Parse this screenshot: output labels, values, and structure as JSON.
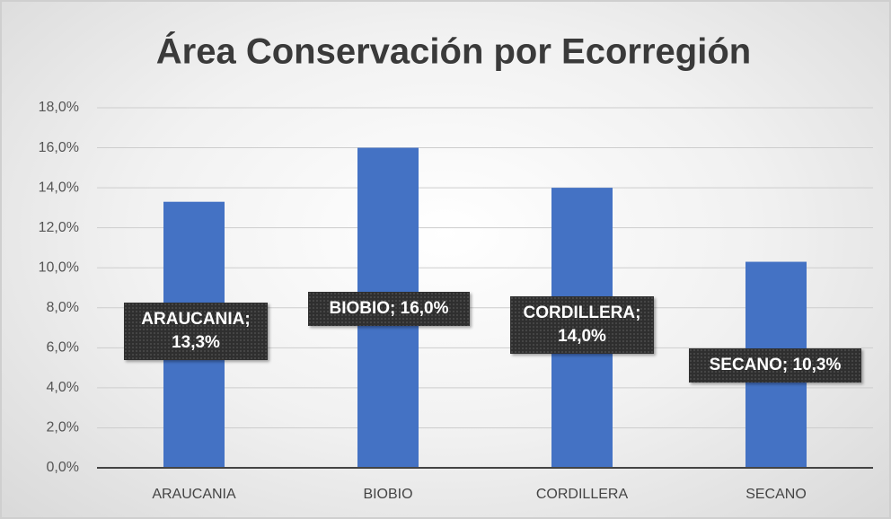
{
  "chart_data": {
    "type": "bar",
    "title": "Área Conservación por Ecorregión",
    "categories": [
      "ARAUCANIA",
      "BIOBIO",
      "CORDILLERA",
      "SECANO"
    ],
    "values": [
      13.3,
      16.0,
      14.0,
      10.3
    ],
    "value_labels": [
      "ARAUCANIA; 13,3%",
      "BIOBIO; 16,0%",
      "CORDILLERA; 14,0%",
      "SECANO; 10,3%"
    ],
    "color": "#4472c4",
    "ylim": [
      0,
      18
    ],
    "yticks": [
      {
        "value": 0,
        "label": "0,0%"
      },
      {
        "value": 2,
        "label": "2,0%"
      },
      {
        "value": 4,
        "label": "4,0%"
      },
      {
        "value": 6,
        "label": "6,0%"
      },
      {
        "value": 8,
        "label": "8,0%"
      },
      {
        "value": 10,
        "label": "10,0%"
      },
      {
        "value": 12,
        "label": "12,0%"
      },
      {
        "value": 14,
        "label": "14,0%"
      },
      {
        "value": 16,
        "label": "16,0%"
      },
      {
        "value": 18,
        "label": "18,0%"
      }
    ],
    "grid": true
  }
}
